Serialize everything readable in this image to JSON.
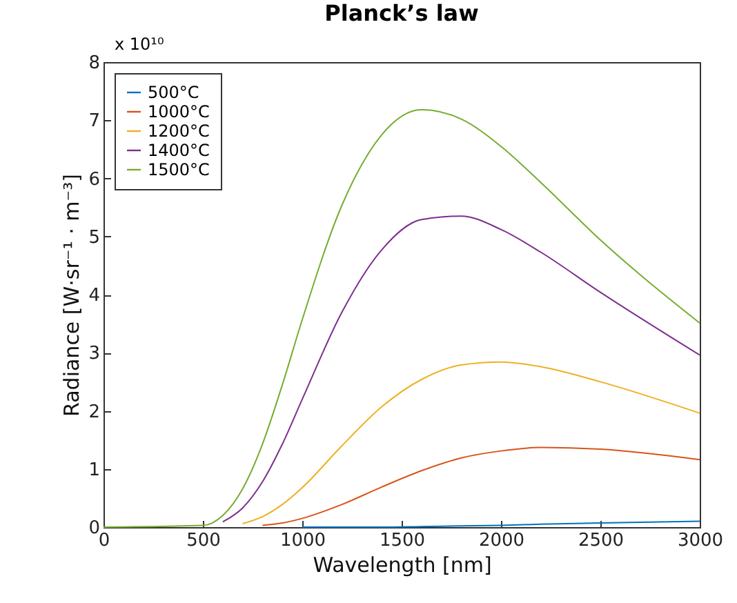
{
  "chart_data": {
    "type": "line",
    "title": "Planck’s law",
    "xlabel": "Wavelength [nm]",
    "ylabel": "Radiance [W·sr⁻¹ · m⁻³]",
    "annotations": [
      "x 10¹⁰"
    ],
    "x": [
      0,
      500,
      600,
      700,
      800,
      900,
      1000,
      1200,
      1400,
      1600,
      1800,
      2000,
      2200,
      2500,
      3000
    ],
    "series": [
      {
        "name": "500°C",
        "color": "#0072bd",
        "values": [
          null,
          null,
          null,
          null,
          null,
          null,
          0,
          0,
          0,
          0.01,
          0.02,
          0.03,
          0.05,
          0.07,
          0.1
        ]
      },
      {
        "name": "1000°C",
        "color": "#d95319",
        "values": [
          null,
          null,
          null,
          null,
          0.03,
          0.07,
          0.15,
          0.39,
          0.69,
          0.97,
          1.19,
          1.31,
          1.37,
          1.34,
          1.16
        ]
      },
      {
        "name": "1200°C",
        "color": "#edb120",
        "values": [
          null,
          null,
          null,
          0.06,
          0.18,
          0.39,
          0.68,
          1.4,
          2.07,
          2.54,
          2.79,
          2.84,
          2.76,
          2.5,
          1.96
        ]
      },
      {
        "name": "1400°C",
        "color": "#7e2f8e",
        "values": [
          null,
          null,
          0.09,
          0.33,
          0.78,
          1.43,
          2.2,
          3.7,
          4.77,
          5.29,
          5.35,
          5.12,
          4.73,
          4.04,
          2.96
        ]
      },
      {
        "name": "1500°C",
        "color": "#77ac30",
        "values": [
          0,
          0.03,
          0.2,
          0.66,
          1.43,
          2.45,
          3.57,
          5.54,
          6.75,
          7.18,
          7.02,
          6.55,
          5.93,
          4.94,
          3.51
        ]
      }
    ],
    "xlim": [
      0,
      3000
    ],
    "xticks": [
      0,
      500,
      1000,
      1500,
      2000,
      2500,
      3000
    ],
    "ylim": [
      0,
      8
    ],
    "yticks": [
      0,
      1,
      2,
      3,
      4,
      5,
      6,
      7,
      8
    ],
    "legend": "top left",
    "grid": false
  }
}
